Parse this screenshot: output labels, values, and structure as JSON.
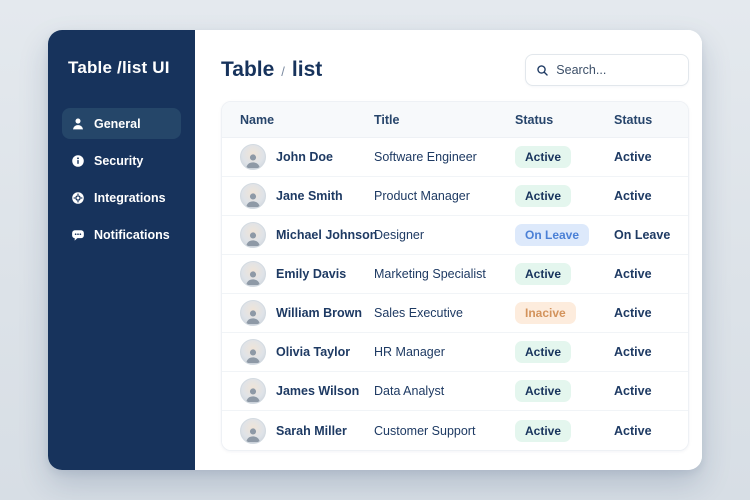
{
  "sidebar": {
    "title": "Table /list UI",
    "items": [
      {
        "label": "General",
        "icon": "user-icon",
        "active": true
      },
      {
        "label": "Security",
        "icon": "info-icon",
        "active": false
      },
      {
        "label": "Integrations",
        "icon": "gear-icon",
        "active": false
      },
      {
        "label": "Notifications",
        "icon": "chat-icon",
        "active": false
      }
    ],
    "colors": {
      "bg": "#17335c",
      "active_item_bg": "#254669",
      "text": "#ffffff"
    }
  },
  "header": {
    "breadcrumb_main": "Table",
    "breadcrumb_separator": "/",
    "breadcrumb_sub": "list"
  },
  "search": {
    "placeholder": "Search...",
    "icon": "search-icon"
  },
  "table": {
    "columns": [
      "Name",
      "Title",
      "Status",
      "Status"
    ],
    "rows": [
      {
        "name": "John Doe",
        "title": "Software Engineer",
        "status": "Active",
        "status_type": "active",
        "status2": "Active"
      },
      {
        "name": "Jane Smith",
        "title": "Product Manager",
        "status": "Active",
        "status_type": "active",
        "status2": "Active"
      },
      {
        "name": "Michael Johnson",
        "title": "Designer",
        "status": "On Leave",
        "status_type": "onleave",
        "status2": "On Leave"
      },
      {
        "name": "Emily Davis",
        "title": "Marketing Specialist",
        "status": "Active",
        "status_type": "active",
        "status2": "Active"
      },
      {
        "name": "William Brown",
        "title": "Sales Executive",
        "status": "Inacive",
        "status_type": "inactive",
        "status2": "Active"
      },
      {
        "name": "Olivia Taylor",
        "title": "HR Manager",
        "status": "Active",
        "status_type": "active",
        "status2": "Active"
      },
      {
        "name": "James Wilson",
        "title": "Data Analyst",
        "status": "Active",
        "status_type": "active",
        "status2": "Active"
      },
      {
        "name": "Sarah Miller",
        "title": "Customer Support",
        "status": "Active",
        "status_type": "active",
        "status2": "Active"
      }
    ],
    "badge_colors": {
      "active": {
        "bg": "#e4f6ee",
        "text": "#17335c"
      },
      "onleave": {
        "bg": "#dde9fb",
        "text": "#4b80d6"
      },
      "inactive": {
        "bg": "#fdecdd",
        "text": "#d3935c"
      }
    }
  }
}
